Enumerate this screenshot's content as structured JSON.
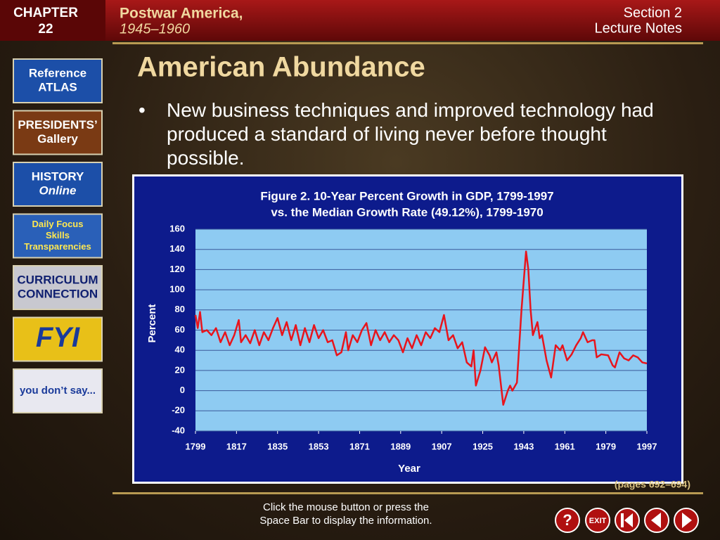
{
  "header": {
    "chapter": "CHAPTER",
    "chapter_number": "22",
    "topic": "Postwar America,",
    "years": "1945–1960",
    "section": "Section 2",
    "section_type": "Lecture Notes"
  },
  "sidebar": [
    {
      "lines": [
        "Reference",
        "ATLAS"
      ]
    },
    {
      "lines": [
        "PRESIDENTS’",
        "Gallery"
      ]
    },
    {
      "lines": [
        "HISTORY",
        "Online"
      ]
    },
    {
      "lines": [
        "Daily Focus",
        "Skills",
        "Transparencies"
      ]
    },
    {
      "lines": [
        "CURRICULUM",
        "CONNECTION"
      ]
    },
    {
      "lines": [
        "FYI"
      ]
    },
    {
      "lines": [
        "you don’t say..."
      ]
    }
  ],
  "slide": {
    "title": "American Abundance",
    "bullet": "New business techniques and improved technology had produced a standard of living never before thought possible."
  },
  "chart_data": {
    "type": "line",
    "title": [
      "Figure 2.  10-Year Percent Growth in GDP, 1799-1997",
      "vs. the Median Growth Rate (49.12%), 1799-1970"
    ],
    "x_label": "Year",
    "y_label": "Percent",
    "x": [
      1799,
      1800,
      1801,
      1802,
      1804,
      1806,
      1808,
      1810,
      1812,
      1814,
      1816,
      1818,
      1819,
      1821,
      1823,
      1825,
      1827,
      1829,
      1831,
      1833,
      1835,
      1837,
      1839,
      1841,
      1843,
      1845,
      1847,
      1849,
      1851,
      1853,
      1855,
      1857,
      1859,
      1861,
      1863,
      1865,
      1866,
      1868,
      1870,
      1872,
      1874,
      1876,
      1878,
      1880,
      1882,
      1884,
      1886,
      1888,
      1890,
      1892,
      1894,
      1896,
      1898,
      1900,
      1902,
      1904,
      1906,
      1908,
      1910,
      1912,
      1914,
      1916,
      1918,
      1920,
      1921,
      1922,
      1924,
      1926,
      1928,
      1929,
      1931,
      1932,
      1934,
      1936,
      1937,
      1938,
      1940,
      1942,
      1944,
      1945,
      1946,
      1947,
      1949,
      1950,
      1951,
      1953,
      1955,
      1957,
      1959,
      1960,
      1962,
      1964,
      1966,
      1968,
      1969,
      1971,
      1973,
      1974,
      1975,
      1977,
      1980,
      1982,
      1983,
      1985,
      1987,
      1989,
      1991,
      1993,
      1995,
      1997
    ],
    "series": [
      {
        "name": "GDP growth",
        "color": "#e8141c",
        "values": [
          75,
          62,
          78,
          58,
          60,
          55,
          62,
          48,
          58,
          45,
          55,
          70,
          48,
          55,
          47,
          60,
          45,
          58,
          50,
          62,
          72,
          55,
          68,
          50,
          65,
          45,
          62,
          48,
          65,
          52,
          60,
          48,
          50,
          35,
          38,
          58,
          40,
          55,
          48,
          60,
          67,
          45,
          60,
          50,
          58,
          48,
          55,
          50,
          38,
          52,
          42,
          55,
          45,
          58,
          52,
          62,
          58,
          75,
          50,
          55,
          42,
          48,
          28,
          24,
          40,
          5,
          20,
          43,
          35,
          28,
          38,
          25,
          -14,
          0,
          5,
          0,
          8,
          80,
          138,
          120,
          80,
          55,
          68,
          52,
          55,
          30,
          13,
          45,
          40,
          45,
          30,
          36,
          45,
          52,
          58,
          48,
          50,
          50,
          33,
          36,
          35,
          25,
          23,
          38,
          32,
          30,
          35,
          33,
          28,
          27
        ]
      }
    ],
    "xlim": [
      1799,
      1997
    ],
    "xticks": [
      1799,
      1817,
      1835,
      1853,
      1871,
      1889,
      1907,
      1925,
      1943,
      1961,
      1979,
      1997
    ],
    "ylim": [
      -40,
      160
    ],
    "yticks": [
      -40,
      -20,
      0,
      20,
      40,
      60,
      80,
      100,
      120,
      140,
      160
    ],
    "grid": true
  },
  "footer": {
    "pages": "(pages 692–694)",
    "instruction": [
      "Click the mouse button or press the",
      "Space Bar to display the information."
    ],
    "help": "?",
    "exit": "EXIT"
  }
}
